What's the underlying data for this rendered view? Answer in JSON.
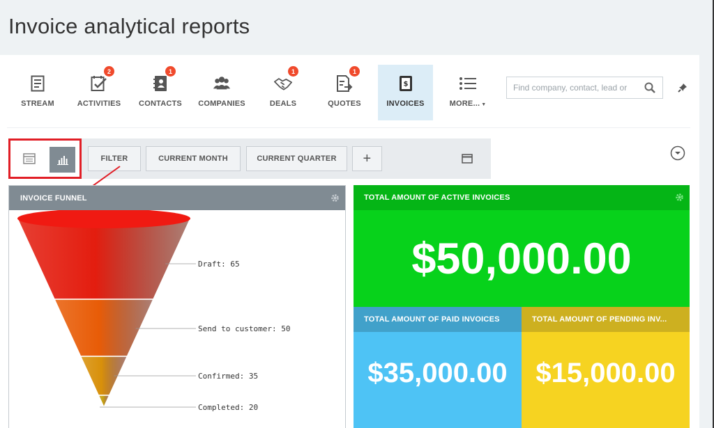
{
  "page": {
    "title": "Invoice analytical reports"
  },
  "nav": {
    "items": [
      {
        "label": "STREAM",
        "icon": "stream-icon",
        "badge": ""
      },
      {
        "label": "ACTIVITIES",
        "icon": "activities-icon",
        "badge": "2"
      },
      {
        "label": "CONTACTS",
        "icon": "contacts-icon",
        "badge": "1"
      },
      {
        "label": "COMPANIES",
        "icon": "companies-icon",
        "badge": ""
      },
      {
        "label": "DEALS",
        "icon": "deals-icon",
        "badge": "1"
      },
      {
        "label": "QUOTES",
        "icon": "quotes-icon",
        "badge": "1"
      },
      {
        "label": "INVOICES",
        "icon": "invoices-icon",
        "badge": "",
        "active": true
      },
      {
        "label": "MORE...",
        "icon": "more-icon",
        "badge": ""
      }
    ]
  },
  "search": {
    "placeholder": "Find company, contact, lead or"
  },
  "toolbar": {
    "filter_label": "FILTER",
    "current_month_label": "CURRENT MONTH",
    "current_quarter_label": "CURRENT QUARTER",
    "add_label": "+"
  },
  "funnel": {
    "title": "INVOICE FUNNEL",
    "stages": [
      {
        "label": "Draft: 65",
        "value": 65,
        "color": "#e31d0f"
      },
      {
        "label": "Send to customer: 50",
        "value": 50,
        "color": "#e85c07"
      },
      {
        "label": "Confirmed: 35",
        "value": 35,
        "color": "#d8900a"
      },
      {
        "label": "Completed: 20",
        "value": 20,
        "color": "#c5a012"
      }
    ]
  },
  "tiles": {
    "active": {
      "title": "TOTAL AMOUNT OF ACTIVE INVOICES",
      "value": "$50,000.00"
    },
    "paid": {
      "title": "TOTAL AMOUNT OF PAID INVOICES",
      "value": "$35,000.00"
    },
    "pending": {
      "title": "TOTAL AMOUNT OF PENDING INV...",
      "value": "$15,000.00"
    }
  },
  "colors": {
    "accent": "#dcedf7",
    "badge": "#f04a2c",
    "highlight": "#e11e26",
    "active_tile": "#07d21b",
    "paid_tile": "#4ec3f5",
    "pending_tile": "#f6d321"
  }
}
